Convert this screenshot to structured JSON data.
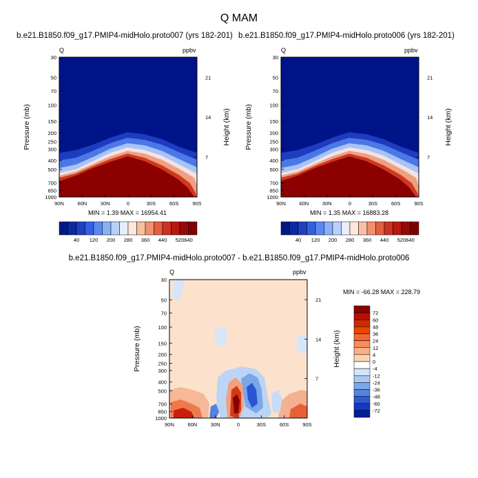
{
  "figure": {
    "title": "Q MAM"
  },
  "panels": [
    {
      "title": "b.e21.B1850.f09_g17.PMIP4-midHolo.proto007 (yrs 182-201)",
      "left_label": "Q",
      "right_label": "ppbv",
      "ylabel": "Pressure (mb)",
      "y2label": "Height (km)",
      "stats": "MIN =   1.39  MAX = 16954.41"
    },
    {
      "title": "b.e21.B1850.f09_g17.PMIP4-midHolo.proto006 (yrs 182-201)",
      "left_label": "Q",
      "right_label": "ppbv",
      "ylabel": "Pressure (mb)",
      "y2label": "Height (km)",
      "stats": "MIN =   1.35  MAX = 16883.28"
    },
    {
      "title": "b.e21.B1850.f09_g17.PMIP4-midHolo.proto007 - b.e21.B1850.f09_g17.PMIP4-midHolo.proto006",
      "left_label": "Q",
      "right_label": "ppbv",
      "ylabel": "Pressure (mb)",
      "y2label": "Height (km)",
      "stats": "MIN = -66.28  MAX = 228.79"
    }
  ],
  "colorbars": {
    "abs_labels": [
      "40",
      "120",
      "200",
      "280",
      "360",
      "440",
      "520",
      "640"
    ],
    "abs_colors": [
      "#001a80",
      "#0a2aa0",
      "#1f40c0",
      "#3360e0",
      "#5a88f0",
      "#8ab0f8",
      "#b8d0fa",
      "#e8eefc",
      "#fde8dc",
      "#f8c0a0",
      "#f09070",
      "#e06040",
      "#d03020",
      "#b81810",
      "#980808",
      "#800000"
    ],
    "diff_labels": [
      "72",
      "60",
      "48",
      "36",
      "24",
      "12",
      "4",
      "0",
      "-4",
      "-12",
      "-24",
      "-36",
      "-48",
      "-60",
      "-72"
    ],
    "diff_colors": [
      "#8c0000",
      "#b41000",
      "#d22800",
      "#e84800",
      "#f26830",
      "#f78c5c",
      "#fab088",
      "#fcd4b4",
      "#ffffff",
      "#d4e4fa",
      "#aac8f2",
      "#7ca8ea",
      "#5482e0",
      "#2e5ad4",
      "#1438c0",
      "#001e96"
    ]
  },
  "chart_data": [
    {
      "type": "heatmap",
      "title": "b.e21.B1850.f09_g17.PMIP4-midHolo.proto007 (yrs 182-201)",
      "x_ticks": [
        "90N",
        "60N",
        "30N",
        "0",
        "30S",
        "60S",
        "90S"
      ],
      "y_ticks": [
        "30",
        "50",
        "70",
        "100",
        "150",
        "200",
        "250",
        "300",
        "400",
        "500",
        "700",
        "850",
        "1000"
      ],
      "y2_ticks": [
        "21",
        "14",
        "7"
      ],
      "xlim": [
        90,
        -90
      ],
      "ylim": [
        1000,
        30
      ],
      "y_scale": "log",
      "xlabel": "",
      "ylabel": "Pressure (mb)",
      "y2label": "Height (km)",
      "min": 1.39,
      "max": 16954.41,
      "units": "ppbv"
    },
    {
      "type": "heatmap",
      "title": "b.e21.B1850.f09_g17.PMIP4-midHolo.proto006 (yrs 182-201)",
      "x_ticks": [
        "90N",
        "60N",
        "30N",
        "0",
        "30S",
        "60S",
        "90S"
      ],
      "y_ticks": [
        "30",
        "50",
        "70",
        "100",
        "150",
        "200",
        "250",
        "300",
        "400",
        "500",
        "700",
        "850",
        "1000"
      ],
      "y2_ticks": [
        "21",
        "14",
        "7"
      ],
      "xlim": [
        90,
        -90
      ],
      "ylim": [
        1000,
        30
      ],
      "y_scale": "log",
      "xlabel": "",
      "ylabel": "Pressure (mb)",
      "y2label": "Height (km)",
      "min": 1.35,
      "max": 16883.28,
      "units": "ppbv"
    },
    {
      "type": "heatmap",
      "title": "b.e21.B1850.f09_g17.PMIP4-midHolo.proto007 - b.e21.B1850.f09_g17.PMIP4-midHolo.proto006",
      "x_ticks": [
        "90N",
        "60N",
        "30N",
        "0",
        "30S",
        "60S",
        "90S"
      ],
      "y_ticks": [
        "30",
        "50",
        "70",
        "100",
        "150",
        "200",
        "250",
        "300",
        "400",
        "500",
        "700",
        "850",
        "1000"
      ],
      "y2_ticks": [
        "21",
        "14",
        "7"
      ],
      "xlim": [
        90,
        -90
      ],
      "ylim": [
        1000,
        30
      ],
      "y_scale": "log",
      "xlabel": "",
      "ylabel": "Pressure (mb)",
      "y2label": "Height (km)",
      "min": -66.28,
      "max": 228.79,
      "units": "ppbv"
    }
  ]
}
